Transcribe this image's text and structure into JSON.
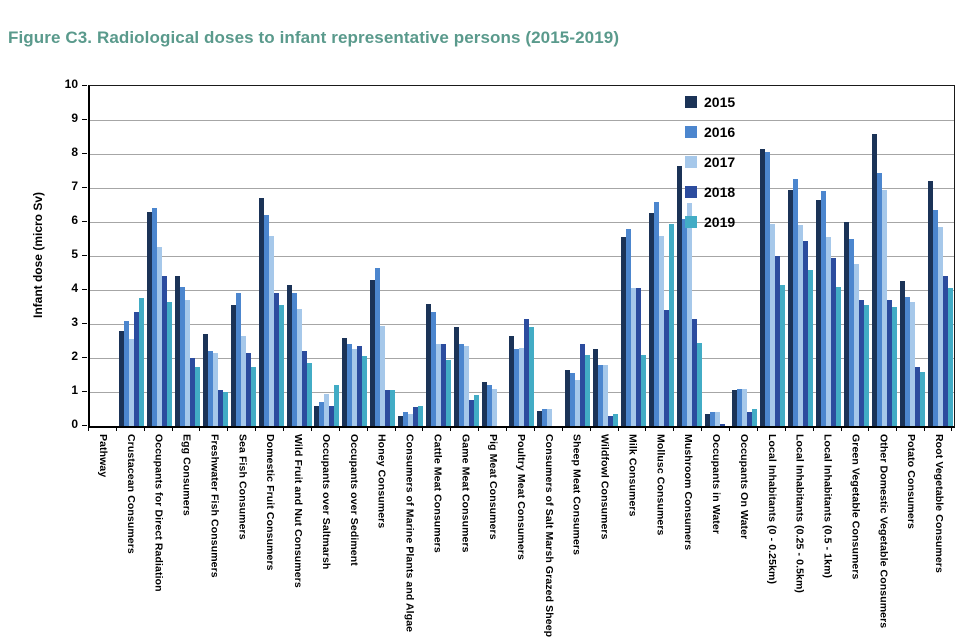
{
  "figure_title": "Figure C3.  Radiological doses to infant representative persons (2015-2019)",
  "colors": {
    "title": "#5a9a8c",
    "gridline": "#a6a6a6",
    "axis": "#000000",
    "series": [
      "#1b3357",
      "#4c86ce",
      "#a6c8ea",
      "#2c4c9e",
      "#42acc5"
    ]
  },
  "chart_data": {
    "type": "bar",
    "title": "Figure C3.  Radiological doses to infant representative persons (2015-2019)",
    "xlabel": "",
    "ylabel": "Infant dose (micro Sv)",
    "ylim": [
      0,
      10
    ],
    "ytick_step": 1,
    "grid": true,
    "legend_position": "top-right-inside",
    "categories": [
      "Pathway",
      "Crustacean Consumers",
      "Occupants for Direct Radiation",
      "Egg Consumers",
      "Freshwater Fish Consumers",
      "Sea Fish Consumers",
      "Domestic Fruit Consumers",
      "Wild Fruit and Nut Consumers",
      "Occupants over Saltmarsh",
      "Occupants over Sediment",
      "Honey Consumers",
      "Consumers of Marine Plants and Algae",
      "Cattle Meat Consumers",
      "Game Meat Consumers",
      "Pig Meat Consumers",
      "Poultry Meat Consumers",
      "Consumers of Salt Marsh Grazed Sheep",
      "Sheep Meat Consumers",
      "Wildfowl Consumers",
      "Milk Consumers",
      "Mollusc Consumers",
      "Mushroom Consumers",
      "Occupants in Water",
      "Occupants On Water",
      "Local Inhabitants (0 - 0.25km)",
      "Local Inhabitants (0.25 - 0.5km)",
      "Local Inhabitants (0.5 - 1km)",
      "Green Vegetable Consumers",
      "Other Domestic Vegetable Consumers",
      "Potato Consumers",
      "Root Vegetable Consumers"
    ],
    "series": [
      {
        "name": "2015",
        "values": [
          0,
          2.8,
          6.3,
          4.4,
          2.7,
          3.55,
          6.7,
          4.15,
          0.6,
          2.6,
          4.3,
          0.3,
          3.6,
          2.9,
          1.3,
          2.65,
          0.45,
          1.65,
          2.25,
          5.55,
          6.25,
          7.65,
          0.35,
          1.05,
          8.15,
          6.95,
          6.65,
          6.0,
          8.6,
          4.25,
          7.2
        ]
      },
      {
        "name": "2016",
        "values": [
          0,
          3.1,
          6.4,
          4.1,
          2.2,
          3.9,
          6.2,
          3.9,
          0.7,
          2.4,
          4.65,
          0.4,
          3.35,
          2.4,
          1.2,
          2.25,
          0.5,
          1.55,
          1.8,
          5.8,
          6.6,
          6.1,
          0.4,
          1.1,
          8.05,
          7.25,
          6.9,
          5.5,
          7.45,
          3.8,
          6.35
        ]
      },
      {
        "name": "2017",
        "values": [
          0,
          2.55,
          5.25,
          3.7,
          2.15,
          2.65,
          5.6,
          3.45,
          0.95,
          2.25,
          2.95,
          0.35,
          2.4,
          2.35,
          1.1,
          2.3,
          0.5,
          1.35,
          1.8,
          4.05,
          5.6,
          6.55,
          0.4,
          1.1,
          5.95,
          5.9,
          5.55,
          4.75,
          6.95,
          3.65,
          5.85
        ]
      },
      {
        "name": "2018",
        "values": [
          0,
          3.35,
          4.4,
          2.0,
          1.05,
          2.15,
          3.9,
          2.2,
          0.6,
          2.35,
          1.05,
          0.55,
          2.4,
          0.75,
          0,
          3.15,
          0,
          2.4,
          0.3,
          4.05,
          3.4,
          3.15,
          0.05,
          0.4,
          5.0,
          5.45,
          4.95,
          3.7,
          3.7,
          1.75,
          4.4
        ]
      },
      {
        "name": "2019",
        "values": [
          0,
          3.75,
          3.65,
          1.75,
          1.0,
          1.75,
          3.55,
          1.85,
          1.2,
          2.05,
          1.05,
          0.6,
          1.95,
          0.9,
          0,
          2.9,
          0,
          2.1,
          0.35,
          2.1,
          5.95,
          2.45,
          0,
          0.5,
          4.15,
          4.6,
          4.1,
          3.55,
          3.5,
          1.6,
          4.05
        ]
      }
    ]
  },
  "legend": {
    "items": [
      "2015",
      "2016",
      "2017",
      "2018",
      "2019"
    ]
  }
}
